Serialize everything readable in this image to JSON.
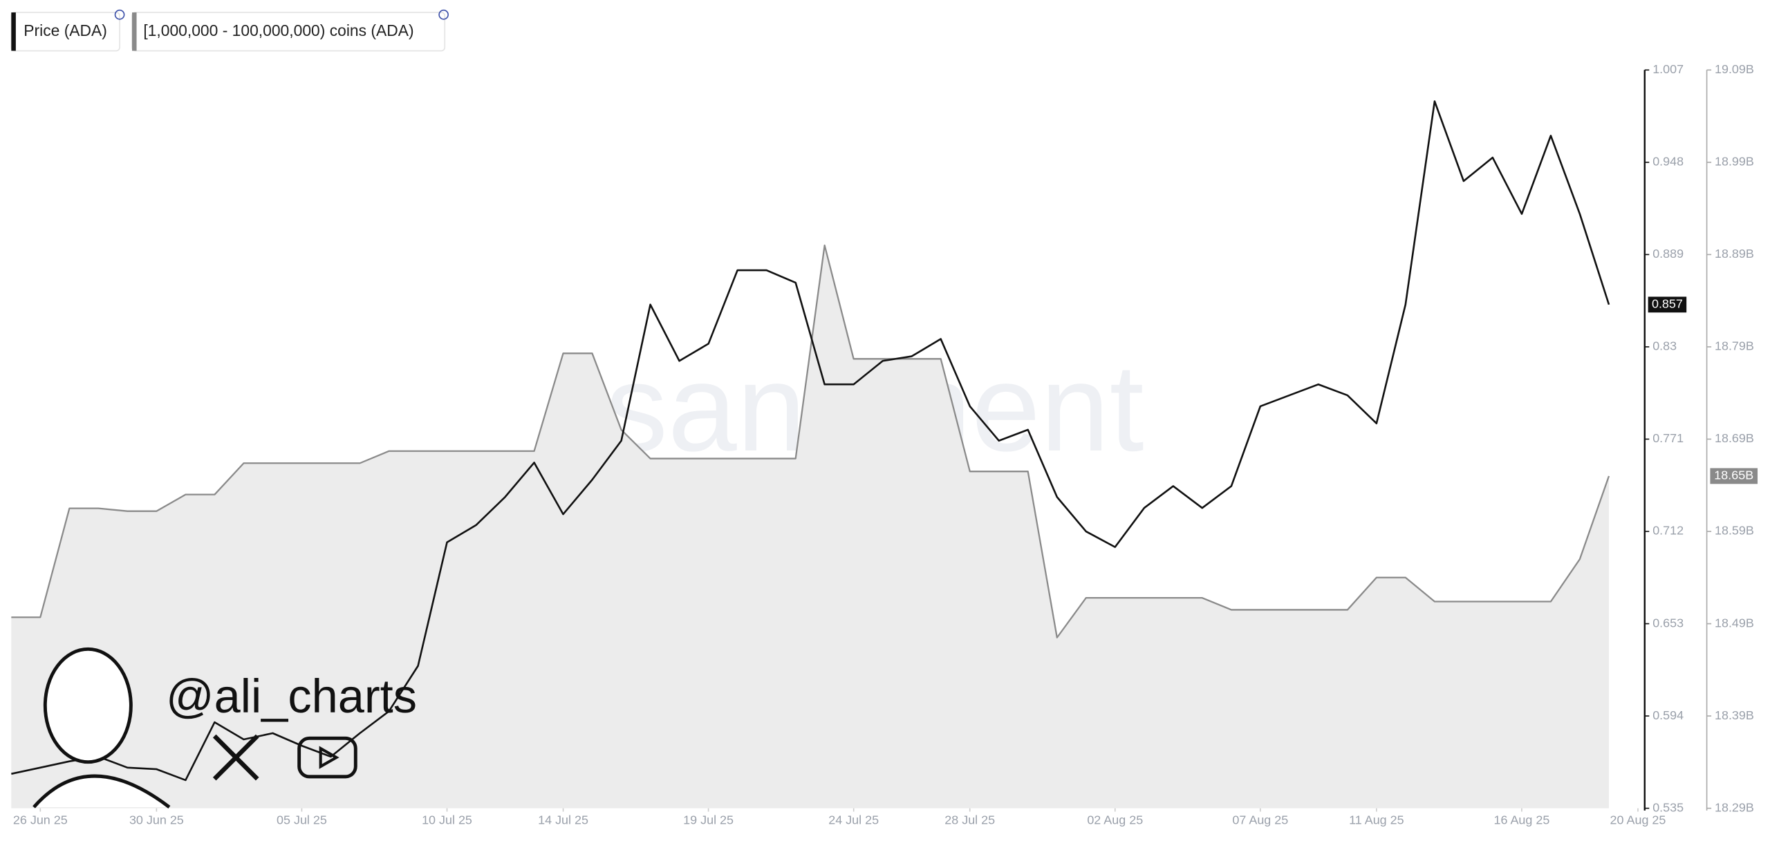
{
  "chart_data": {
    "type": "line",
    "legend": [
      "Price (ADA)",
      "[1,000,000 - 100,000,000) coins (ADA)"
    ],
    "watermark": "santiment",
    "annotation": "@ali_charts",
    "x": [
      "2025-06-25",
      "2025-06-26",
      "2025-06-27",
      "2025-06-28",
      "2025-06-29",
      "2025-06-30",
      "2025-07-01",
      "2025-07-02",
      "2025-07-03",
      "2025-07-04",
      "2025-07-05",
      "2025-07-06",
      "2025-07-07",
      "2025-07-08",
      "2025-07-09",
      "2025-07-10",
      "2025-07-11",
      "2025-07-12",
      "2025-07-13",
      "2025-07-14",
      "2025-07-15",
      "2025-07-16",
      "2025-07-17",
      "2025-07-18",
      "2025-07-19",
      "2025-07-20",
      "2025-07-21",
      "2025-07-22",
      "2025-07-23",
      "2025-07-24",
      "2025-07-25",
      "2025-07-26",
      "2025-07-27",
      "2025-07-28",
      "2025-07-29",
      "2025-07-30",
      "2025-07-31",
      "2025-08-01",
      "2025-08-02",
      "2025-08-03",
      "2025-08-04",
      "2025-08-05",
      "2025-08-06",
      "2025-08-07",
      "2025-08-08",
      "2025-08-09",
      "2025-08-10",
      "2025-08-11",
      "2025-08-12",
      "2025-08-13",
      "2025-08-14",
      "2025-08-15",
      "2025-08-16",
      "2025-08-17",
      "2025-08-18",
      "2025-08-19"
    ],
    "xlim": [
      "2025-06-25",
      "2025-08-20"
    ],
    "xticks": [
      {
        "value": "2025-06-26",
        "label": "26 Jun 25"
      },
      {
        "value": "2025-06-30",
        "label": "30 Jun 25"
      },
      {
        "value": "2025-07-05",
        "label": "05 Jul 25"
      },
      {
        "value": "2025-07-10",
        "label": "10 Jul 25"
      },
      {
        "value": "2025-07-14",
        "label": "14 Jul 25"
      },
      {
        "value": "2025-07-19",
        "label": "19 Jul 25"
      },
      {
        "value": "2025-07-24",
        "label": "24 Jul 25"
      },
      {
        "value": "2025-07-28",
        "label": "28 Jul 25"
      },
      {
        "value": "2025-08-02",
        "label": "02 Aug 25"
      },
      {
        "value": "2025-08-07",
        "label": "07 Aug 25"
      },
      {
        "value": "2025-08-11",
        "label": "11 Aug 25"
      },
      {
        "value": "2025-08-16",
        "label": "16 Aug 25"
      },
      {
        "value": "2025-08-20",
        "label": "20 Aug 25"
      }
    ],
    "ylim": [
      0.535,
      1.007
    ],
    "yticks": [
      0.535,
      0.594,
      0.653,
      0.712,
      0.771,
      0.83,
      0.889,
      0.948,
      1.007
    ],
    "y2lim": [
      18.29,
      19.09
    ],
    "y2ticks": [
      {
        "value": 18.29,
        "label": "18.29B"
      },
      {
        "value": 18.39,
        "label": "18.39B"
      },
      {
        "value": 18.49,
        "label": "18.49B"
      },
      {
        "value": 18.59,
        "label": "18.59B"
      },
      {
        "value": 18.69,
        "label": "18.69B"
      },
      {
        "value": 18.79,
        "label": "18.79B"
      },
      {
        "value": 18.89,
        "label": "18.89B"
      },
      {
        "value": 18.99,
        "label": "18.99B"
      },
      {
        "value": 19.09,
        "label": "19.09B"
      }
    ],
    "series": [
      {
        "name": "Price (ADA)",
        "color": "#111111",
        "values": [
          0.557,
          0.561,
          0.565,
          0.568,
          0.561,
          0.56,
          0.553,
          0.59,
          0.579,
          0.583,
          0.575,
          0.568,
          0.583,
          0.597,
          0.626,
          0.705,
          0.716,
          0.734,
          0.756,
          0.723,
          0.745,
          0.77,
          0.857,
          0.821,
          0.832,
          0.879,
          0.879,
          0.871,
          0.806,
          0.806,
          0.821,
          0.824,
          0.835,
          0.792,
          0.77,
          0.777,
          0.734,
          0.712,
          0.702,
          0.727,
          0.741,
          0.727,
          0.741,
          0.792,
          0.799,
          0.806,
          0.799,
          0.781,
          0.857,
          0.987,
          0.936,
          0.951,
          0.915,
          0.965,
          0.915,
          0.857
        ]
      },
      {
        "name": "[1,000,000 - 100,000,000) coins (ADA)",
        "color": "#8a8a8a",
        "axis": "y2",
        "current_label": "18.65B",
        "values": [
          18.497,
          18.497,
          18.615,
          18.615,
          18.612,
          18.612,
          18.63,
          18.63,
          18.664,
          18.664,
          18.664,
          18.664,
          18.664,
          18.677,
          18.677,
          18.677,
          18.677,
          18.677,
          18.677,
          18.783,
          18.783,
          18.7,
          18.669,
          18.669,
          18.669,
          18.669,
          18.669,
          18.669,
          18.9,
          18.777,
          18.777,
          18.777,
          18.777,
          18.655,
          18.655,
          18.655,
          18.475,
          18.518,
          18.518,
          18.518,
          18.518,
          18.518,
          18.505,
          18.505,
          18.505,
          18.505,
          18.505,
          18.54,
          18.54,
          18.514,
          18.514,
          18.514,
          18.514,
          18.514,
          18.56,
          18.65
        ]
      }
    ]
  }
}
